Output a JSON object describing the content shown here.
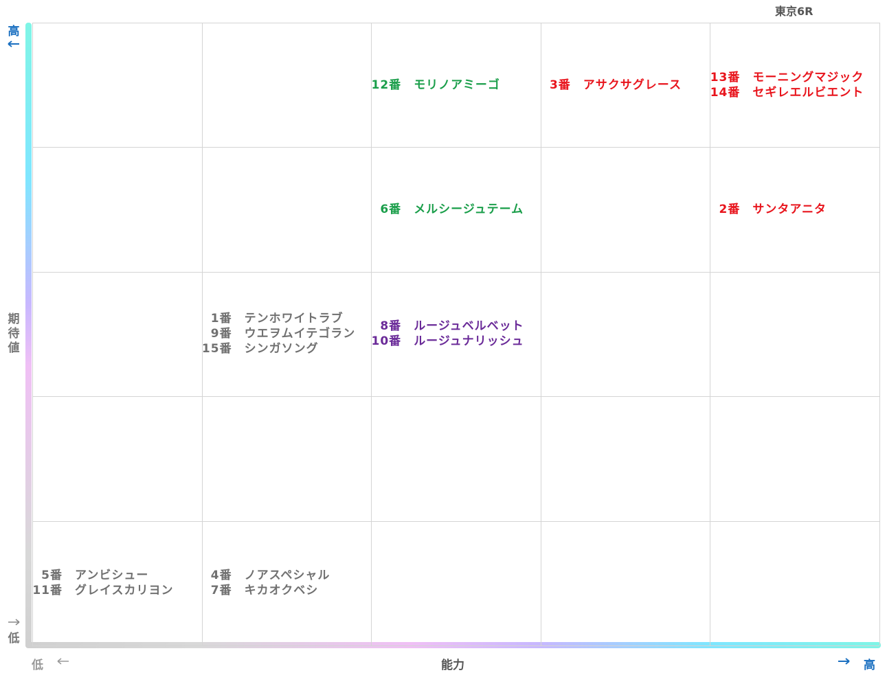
{
  "title": "東京6R",
  "y_axis": {
    "label": "期待値",
    "high": "高",
    "low": "低"
  },
  "x_axis": {
    "label": "能力",
    "low": "低",
    "high": "高"
  },
  "grid": {
    "rows": [
      [
        {},
        {},
        {
          "color": "#1a9e4a",
          "entries": [
            {
              "number": "12番",
              "name": "モリノアミーゴ"
            }
          ]
        },
        {
          "color": "#e8141c",
          "entries": [
            {
              "number": "3番",
              "name": "アサクサグレース"
            }
          ]
        },
        {
          "color": "#e8141c",
          "entries": [
            {
              "number": "13番",
              "name": "モーニングマジック"
            },
            {
              "number": "14番",
              "name": "セギレエルビエント"
            }
          ]
        }
      ],
      [
        {},
        {},
        {
          "color": "#1a9e4a",
          "entries": [
            {
              "number": "6番",
              "name": "メルシージュテーム"
            }
          ]
        },
        {},
        {
          "color": "#e8141c",
          "entries": [
            {
              "number": "2番",
              "name": "サンタアニタ"
            }
          ]
        }
      ],
      [
        {},
        {
          "color": "#707070",
          "entries": [
            {
              "number": "1番",
              "name": "テンホワイトラブ"
            },
            {
              "number": "9番",
              "name": "ウエヲムイテゴラン"
            },
            {
              "number": "15番",
              "name": "シンガソング"
            }
          ]
        },
        {
          "color": "#6a2a98",
          "entries": [
            {
              "number": "8番",
              "name": "ルージュベルベット"
            },
            {
              "number": "10番",
              "name": "ルージュナリッシュ"
            }
          ]
        },
        {},
        {}
      ],
      [
        {},
        {},
        {},
        {},
        {}
      ],
      [
        {
          "color": "#707070",
          "entries": [
            {
              "number": "5番",
              "name": "アンビシュー"
            },
            {
              "number": "11番",
              "name": "グレイスカリヨン"
            }
          ]
        },
        {
          "color": "#707070",
          "entries": [
            {
              "number": "4番",
              "name": "ノアスペシャル"
            },
            {
              "number": "7番",
              "name": "キカオクベシ"
            }
          ]
        },
        {},
        {},
        {}
      ]
    ]
  }
}
